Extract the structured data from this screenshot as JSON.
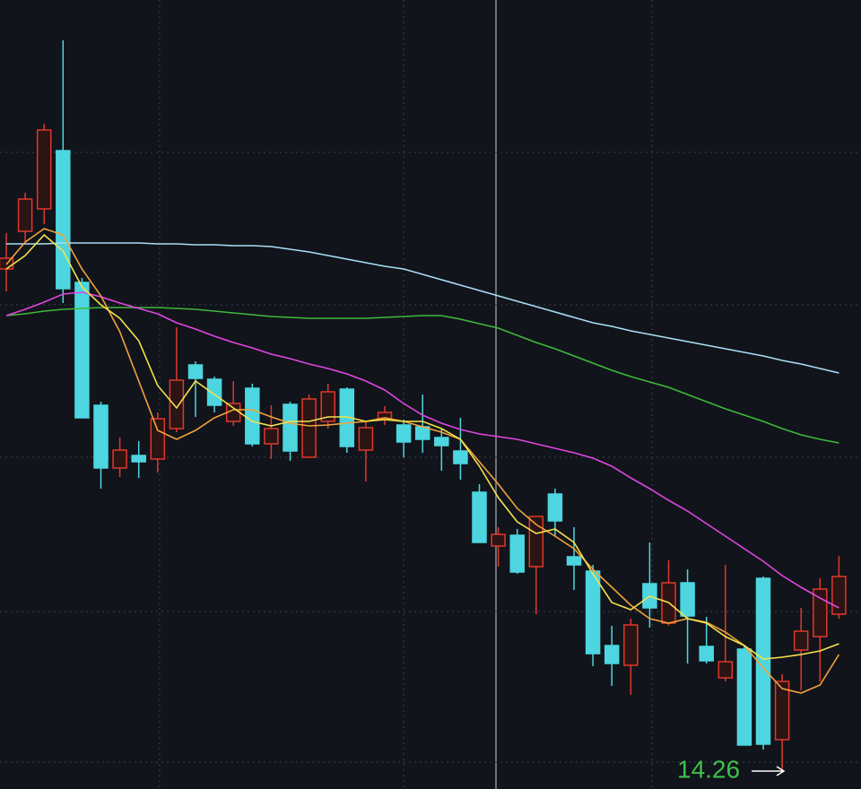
{
  "chart_data": {
    "type": "candlestick",
    "open": [
      19.84,
      20.26,
      20.51,
      21.16,
      19.69,
      18.32,
      17.62,
      17.76,
      17.72,
      18.06,
      18.77,
      18.61,
      18.14,
      18.51,
      17.89,
      18.33,
      17.74,
      18.14,
      18.5,
      17.82,
      18.16,
      18.1,
      18.08,
      17.96,
      17.81,
      17.35,
      16.75,
      16.87,
      16.52,
      17.33,
      16.63,
      16.47,
      15.64,
      15.42,
      16.33,
      15.89,
      16.34,
      15.63,
      15.28,
      15.6,
      16.39,
      14.59,
      15.59,
      15.74,
      15.99
    ],
    "high": [
      20.24,
      20.69,
      21.46,
      22.39,
      19.74,
      18.36,
      17.96,
      17.92,
      18.24,
      19.19,
      18.81,
      18.64,
      18.59,
      18.56,
      18.32,
      18.36,
      18.44,
      18.56,
      18.52,
      18.14,
      18.31,
      18.16,
      18.44,
      18.06,
      18.18,
      17.44,
      16.96,
      16.94,
      17.08,
      17.39,
      16.96,
      16.54,
      15.86,
      15.94,
      16.79,
      16.59,
      16.49,
      15.96,
      16.54,
      15.64,
      16.41,
      15.32,
      16.06,
      16.39,
      16.64
    ],
    "low": [
      19.59,
      20.14,
      20.34,
      19.46,
      18.18,
      17.39,
      17.52,
      17.51,
      17.57,
      18.02,
      18.19,
      18.24,
      18.09,
      17.86,
      17.72,
      17.7,
      17.74,
      18.06,
      17.79,
      17.47,
      18.1,
      17.74,
      17.79,
      17.59,
      17.49,
      16.79,
      16.52,
      16.44,
      15.99,
      16.86,
      16.26,
      15.41,
      15.19,
      15.09,
      15.84,
      15.86,
      15.44,
      15.44,
      15.24,
      14.53,
      14.48,
      14.26,
      15.14,
      15.24,
      15.94
    ],
    "close": [
      19.96,
      20.62,
      21.39,
      19.62,
      18.18,
      17.62,
      17.82,
      17.69,
      18.17,
      18.6,
      18.62,
      18.32,
      18.34,
      17.89,
      18.06,
      17.81,
      18.39,
      18.47,
      17.86,
      18.07,
      18.24,
      17.91,
      17.94,
      17.87,
      17.67,
      16.79,
      16.88,
      16.46,
      17.08,
      17.03,
      16.54,
      15.55,
      15.44,
      15.87,
      16.06,
      16.34,
      15.97,
      15.47,
      15.46,
      14.53,
      14.54,
      15.24,
      15.8,
      16.27,
      16.41
    ],
    "up_color": "#e0382a",
    "down_color": "#4dd6e0",
    "series": [
      {
        "color": "#a9def6",
        "values": [
          20.12,
          20.12,
          20.12,
          20.13,
          20.13,
          20.13,
          20.13,
          20.13,
          20.12,
          20.12,
          20.11,
          20.11,
          20.1,
          20.1,
          20.09,
          20.06,
          20.03,
          19.99,
          19.95,
          19.91,
          19.87,
          19.84,
          19.78,
          19.72,
          19.66,
          19.6,
          19.54,
          19.48,
          19.42,
          19.36,
          19.3,
          19.24,
          19.2,
          19.15,
          19.11,
          19.07,
          19.03,
          18.99,
          18.95,
          18.91,
          18.87,
          18.82,
          18.78,
          18.73,
          18.68
        ]
      },
      {
        "color": "#3fb83a",
        "values": [
          19.32,
          19.34,
          19.37,
          19.39,
          19.4,
          19.41,
          19.41,
          19.41,
          19.41,
          19.4,
          19.39,
          19.37,
          19.35,
          19.33,
          19.31,
          19.3,
          19.29,
          19.29,
          19.29,
          19.29,
          19.3,
          19.31,
          19.32,
          19.32,
          19.28,
          19.23,
          19.18,
          19.1,
          19.02,
          18.95,
          18.87,
          18.79,
          18.71,
          18.64,
          18.58,
          18.52,
          18.44,
          18.36,
          18.28,
          18.21,
          18.14,
          18.06,
          17.99,
          17.94,
          17.9
        ]
      },
      {
        "color": "#e046e0",
        "values": [
          19.32,
          19.39,
          19.47,
          19.56,
          19.58,
          19.53,
          19.46,
          19.4,
          19.34,
          19.24,
          19.17,
          19.09,
          19.02,
          18.96,
          18.89,
          18.84,
          18.78,
          18.73,
          18.67,
          18.59,
          18.49,
          18.34,
          18.21,
          18.12,
          18.05,
          18.0,
          17.97,
          17.94,
          17.89,
          17.84,
          17.79,
          17.73,
          17.64,
          17.51,
          17.39,
          17.26,
          17.14,
          17.0,
          16.86,
          16.72,
          16.58,
          16.42,
          16.29,
          16.17,
          16.06
        ]
      },
      {
        "color": "#f2a23a",
        "values": [
          19.89,
          20.14,
          20.29,
          20.22,
          19.84,
          19.54,
          19.14,
          18.59,
          18.04,
          17.94,
          18.04,
          18.18,
          18.27,
          18.27,
          18.19,
          18.12,
          18.09,
          18.1,
          18.12,
          18.14,
          18.18,
          18.14,
          18.08,
          18.02,
          17.94,
          17.69,
          17.44,
          17.17,
          16.99,
          16.86,
          16.72,
          16.49,
          16.29,
          16.09,
          15.94,
          15.89,
          15.94,
          15.9,
          15.79,
          15.64,
          15.39,
          15.16,
          15.11,
          15.2,
          15.54
        ]
      },
      {
        "color": "#f4e24c",
        "values": [
          19.84,
          19.99,
          20.22,
          20.04,
          19.64,
          19.44,
          19.29,
          19.04,
          18.54,
          18.29,
          18.59,
          18.44,
          18.29,
          18.14,
          18.09,
          18.14,
          18.14,
          18.19,
          18.19,
          18.14,
          18.16,
          18.14,
          18.14,
          18.06,
          17.94,
          17.64,
          17.29,
          17.02,
          16.89,
          16.94,
          16.79,
          16.44,
          16.12,
          16.04,
          16.19,
          16.12,
          15.94,
          15.89,
          15.74,
          15.64,
          15.49,
          15.51,
          15.54,
          15.58,
          15.66
        ]
      }
    ],
    "ylim": [
      14.04,
      22.84
    ],
    "yticks": [
      21.14,
      19.44,
      17.74,
      16.02,
      14.34
    ],
    "grid": true,
    "annotation": "14.26",
    "annotation_color": "#3fc24a"
  }
}
